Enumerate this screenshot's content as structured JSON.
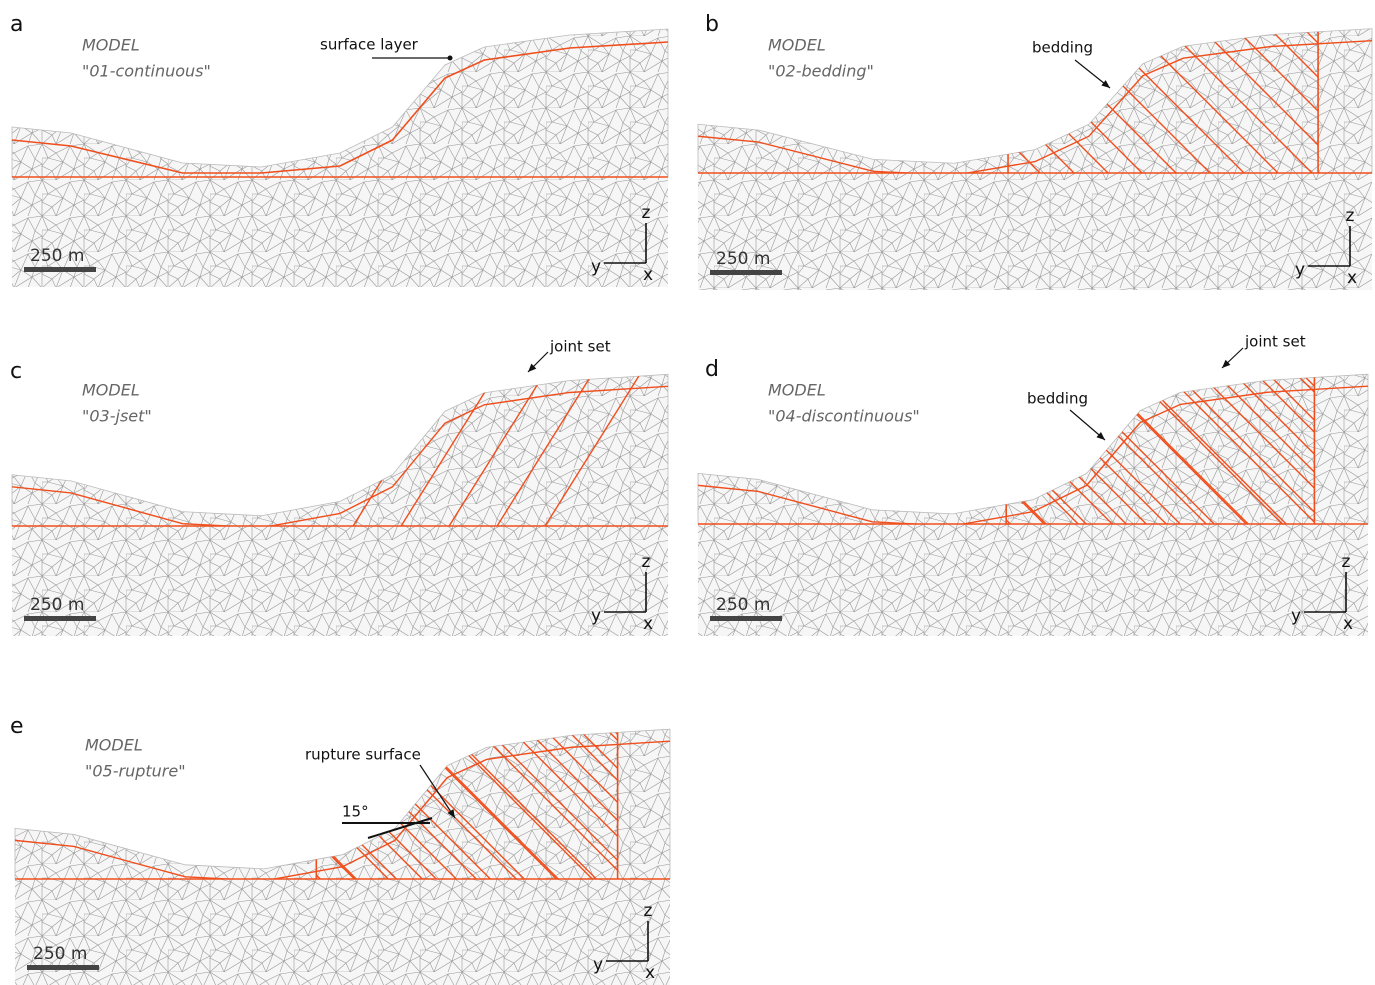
{
  "panels": [
    {
      "label": "a",
      "model_title": "MODEL",
      "model_name": "\"01-continuous\"",
      "annotations": [
        "surface layer"
      ],
      "scale_label": "250 m",
      "axes": {
        "z": "z",
        "y": "y",
        "x": "x"
      }
    },
    {
      "label": "b",
      "model_title": "MODEL",
      "model_name": "\"02-bedding\"",
      "annotations": [
        "bedding"
      ],
      "scale_label": "250 m",
      "axes": {
        "z": "z",
        "y": "y",
        "x": "x"
      }
    },
    {
      "label": "c",
      "model_title": "MODEL",
      "model_name": "\"03-jset\"",
      "annotations": [
        "joint set"
      ],
      "scale_label": "250 m",
      "axes": {
        "z": "z",
        "y": "y",
        "x": "x"
      }
    },
    {
      "label": "d",
      "model_title": "MODEL",
      "model_name": "\"04-discontinuous\"",
      "annotations": [
        "bedding",
        "joint set"
      ],
      "scale_label": "250 m",
      "axes": {
        "z": "z",
        "y": "y",
        "x": "x"
      }
    },
    {
      "label": "e",
      "model_title": "MODEL",
      "model_name": "\"05-rupture\"",
      "annotations": [
        "rupture surface",
        "15°"
      ],
      "scale_label": "250 m",
      "axes": {
        "z": "z",
        "y": "y",
        "x": "x"
      }
    }
  ]
}
